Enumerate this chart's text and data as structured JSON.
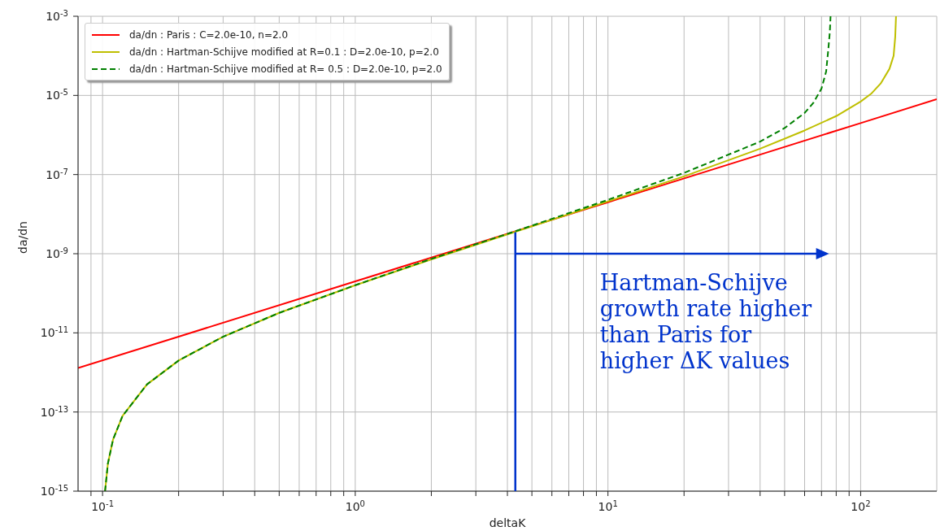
{
  "chart_data": {
    "type": "line",
    "xlabel": "deltaK",
    "ylabel": "da/dn",
    "log": "xy",
    "grid": true,
    "legend": "top left",
    "marker": "none",
    "xlim": [
      0.08,
      200
    ],
    "xticks": [
      {
        "value": 0.09,
        "label": null
      },
      {
        "value": 0.1,
        "label": "10$^{-1}$"
      },
      {
        "value": 0.2,
        "label": null
      },
      {
        "value": 0.3,
        "label": null
      },
      {
        "value": 0.4,
        "label": null
      },
      {
        "value": 0.5,
        "label": null
      },
      {
        "value": 0.6,
        "label": null
      },
      {
        "value": 0.7,
        "label": null
      },
      {
        "value": 0.8,
        "label": null
      },
      {
        "value": 0.9,
        "label": null
      },
      {
        "value": 1,
        "label": "10$^{0}$"
      },
      {
        "value": 2,
        "label": null
      },
      {
        "value": 3,
        "label": null
      },
      {
        "value": 4,
        "label": null
      },
      {
        "value": 5,
        "label": null
      },
      {
        "value": 6,
        "label": null
      },
      {
        "value": 7,
        "label": null
      },
      {
        "value": 8,
        "label": null
      },
      {
        "value": 9,
        "label": null
      },
      {
        "value": 10,
        "label": "10$^{1}$"
      },
      {
        "value": 20,
        "label": null
      },
      {
        "value": 30,
        "label": null
      },
      {
        "value": 40,
        "label": null
      },
      {
        "value": 50,
        "label": null
      },
      {
        "value": 60,
        "label": null
      },
      {
        "value": 70,
        "label": null
      },
      {
        "value": 80,
        "label": null
      },
      {
        "value": 90,
        "label": null
      },
      {
        "value": 100,
        "label": "10$^{2}$"
      }
    ],
    "ylim": [
      1e-15,
      0.001
    ],
    "yticks": [
      {
        "value": 1e-15,
        "label": "10$^{-15}$"
      },
      {
        "value": 1e-13,
        "label": "10$^{-13}$"
      },
      {
        "value": 1e-11,
        "label": "10$^{-11}$"
      },
      {
        "value": 1e-09,
        "label": "10$^{-9}$"
      },
      {
        "value": 1e-07,
        "label": "10$^{-7}$"
      },
      {
        "value": 1e-05,
        "label": "10$^{-5}$"
      },
      {
        "value": 0.001,
        "label": "10$^{-3}$"
      }
    ],
    "series": [
      {
        "name": "da/dn : Paris : C=2.0e-10, n=2.0",
        "color": "#ff0000",
        "line_style": "solid",
        "x": [
          0.08,
          0.2,
          1,
          4.3,
          10,
          40,
          100,
          200
        ],
        "values": [
          1.3e-12,
          8e-12,
          2e-10,
          3.7e-09,
          2e-08,
          3.2e-07,
          2e-06,
          8e-06
        ]
      },
      {
        "name": "da/dn : Hartman-Schijve modified at R=0.1 : D=2.0e-10, p=2.0",
        "color": "#bfbf00",
        "line_style": "solid",
        "x": [
          0.1023,
          0.105,
          0.11,
          0.12,
          0.15,
          0.2,
          0.3,
          0.5,
          1,
          2,
          4.3,
          10,
          20,
          40,
          60,
          80,
          100,
          110,
          120,
          130,
          135,
          137,
          138
        ],
        "values": [
          1e-15,
          5e-15,
          2e-14,
          8e-14,
          5e-13,
          2e-12,
          8e-12,
          3.2e-11,
          1.6e-10,
          7.2e-10,
          3.6e-09,
          2.1e-08,
          9e-08,
          4.5e-07,
          1.3e-06,
          3e-06,
          7e-06,
          1.1e-05,
          2e-05,
          4.7e-05,
          0.0001,
          0.0003,
          0.001
        ]
      },
      {
        "name": "da/dn : Hartman-Schijve modified at R= 0.5 : D=2.0e-10, p=2.0",
        "color": "#008000",
        "line_style": "dashed",
        "x": [
          0.1023,
          0.105,
          0.11,
          0.12,
          0.15,
          0.2,
          0.3,
          0.5,
          1,
          2,
          4.3,
          10,
          20,
          40,
          50,
          60,
          65,
          70,
          73,
          74.5,
          75.5,
          76
        ],
        "values": [
          1e-15,
          5e-15,
          2e-14,
          8e-14,
          5e-13,
          2e-12,
          8e-12,
          3.2e-11,
          1.6e-10,
          7.4e-10,
          3.7e-09,
          2.3e-08,
          1.1e-07,
          6.8e-07,
          1.5e-06,
          3.6e-06,
          6.5e-06,
          1.5e-05,
          4e-05,
          0.00015,
          0.0004,
          0.001
        ]
      }
    ],
    "annotations": [
      "Hartman-Schijve growth rate higher than Paris for higher ΔK values"
    ]
  }
}
